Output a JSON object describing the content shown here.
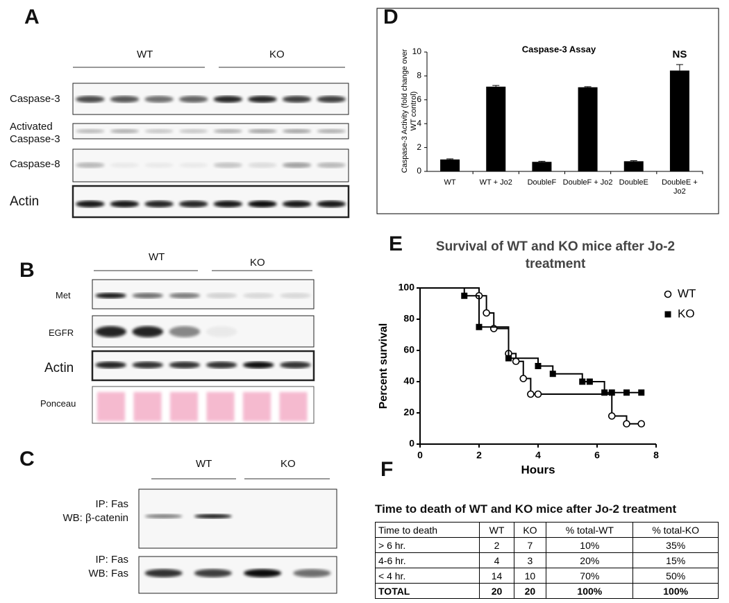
{
  "panels": {
    "A": {
      "letter": "A",
      "groups": [
        "WT",
        "KO"
      ],
      "rows": [
        "Caspase-3",
        "Activated",
        "Caspase-3",
        "Caspase-8",
        "Actin"
      ]
    },
    "B": {
      "letter": "B",
      "groups": [
        "WT",
        "KO"
      ],
      "rows": [
        "Met",
        "EGFR",
        "Actin",
        "Ponceau"
      ]
    },
    "C": {
      "letter": "C",
      "groups": [
        "WT",
        "KO"
      ],
      "rows": [
        "IP: Fas",
        "WB: β-catenin",
        "IP: Fas",
        "WB: Fas"
      ]
    },
    "D": {
      "letter": "D"
    },
    "E": {
      "letter": "E"
    },
    "F": {
      "letter": "F"
    }
  },
  "chart_data": [
    {
      "type": "bar",
      "title": "Caspase-3 Assay",
      "y_label": "Caspase-3 Activity (fold change over WT control)",
      "categories": [
        "WT",
        "WT + Jo2",
        "DoubleF",
        "DoubleF + Jo2",
        "DoubleE",
        "DoubleE + Jo2"
      ],
      "values": [
        1.0,
        7.1,
        0.8,
        7.05,
        0.85,
        8.45
      ],
      "errors": [
        0.05,
        0.1,
        0.05,
        0.05,
        0.05,
        0.5
      ],
      "color": "#000000",
      "annotation": "NS",
      "ylim": [
        0,
        10
      ],
      "yticks": [
        0,
        2,
        4,
        6,
        8,
        10
      ]
    },
    {
      "type": "line",
      "step": true,
      "title": "Survival of WT and KO mice after Jo-2 treatment",
      "x_label": "Hours",
      "y_label": "Percent survival",
      "series": [
        {
          "name": "WT",
          "color": "#000000",
          "marker": "open-circle",
          "x": [
            0,
            2,
            2.25,
            2.5,
            3,
            3.25,
            3.5,
            3.75,
            4,
            6.5,
            7,
            7.5
          ],
          "values": [
            100,
            95,
            84,
            74,
            58,
            53,
            42,
            32,
            32,
            18,
            13,
            13
          ]
        },
        {
          "name": "KO",
          "color": "#000000",
          "marker": "filled-square",
          "x": [
            0,
            1.5,
            2,
            3,
            4,
            4.5,
            5.5,
            5.75,
            6.25,
            6.5,
            7,
            7.5
          ],
          "values": [
            100,
            95,
            75,
            55,
            50,
            45,
            40,
            40,
            33,
            33,
            33,
            33
          ]
        }
      ],
      "xlim": [
        0,
        8
      ],
      "xticks": [
        0,
        2,
        4,
        6,
        8
      ],
      "ylim": [
        0,
        100
      ],
      "yticks": [
        0,
        20,
        40,
        60,
        80,
        100
      ],
      "legend": "upper right"
    }
  ],
  "table": {
    "title": "Time to death of WT and KO mice after Jo-2 treatment",
    "header": [
      "Time to death",
      "WT",
      "KO",
      "% total-WT",
      "% total-KO"
    ],
    "rows": [
      [
        "> 6 hr.",
        "2",
        "7",
        "10%",
        "35%"
      ],
      [
        "4-6 hr.",
        "4",
        "3",
        "20%",
        "15%"
      ],
      [
        "< 4 hr.",
        "14",
        "10",
        "70%",
        "50%"
      ],
      [
        "TOTAL",
        "20",
        "20",
        "100%",
        "100%"
      ]
    ]
  }
}
